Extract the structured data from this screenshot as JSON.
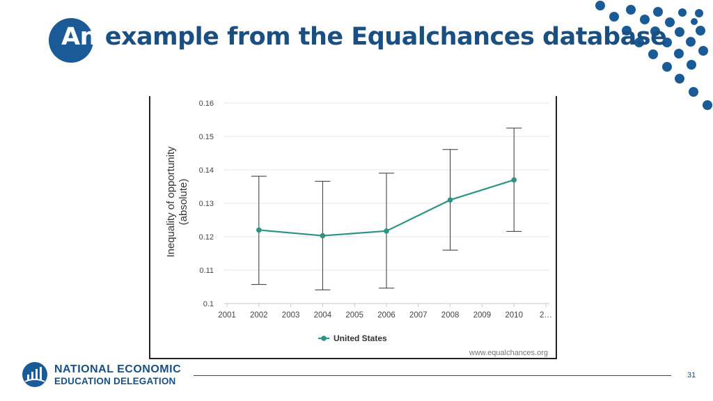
{
  "slide": {
    "title_first_word": "An",
    "title_rest": " example from the Equalchances database",
    "organization_line1": "NATIONAL ECONOMIC",
    "organization_line2": "EDUCATION DELEGATION",
    "page_number": "31",
    "accent_color": "#1a5a96"
  },
  "chart_data": {
    "type": "line",
    "title": "",
    "ylabel": "Inequality of opportunity (absolute)",
    "xlabel": "",
    "x_ticks": [
      "2001",
      "2002",
      "2003",
      "2004",
      "2005",
      "2006",
      "2007",
      "2008",
      "2009",
      "2010",
      "2…"
    ],
    "y_ticks": [
      "0.1",
      "0.11",
      "0.12",
      "0.13",
      "0.14",
      "0.15",
      "0.16"
    ],
    "ylim": [
      0.1,
      0.16
    ],
    "grid": "horizontal",
    "legend_position": "bottom",
    "watermark": "www.equalchances.org",
    "series": [
      {
        "name": "United States",
        "color": "#2e9384",
        "x": [
          2002,
          2004,
          2006,
          2008,
          2010
        ],
        "values": [
          0.122,
          0.1203,
          0.1217,
          0.131,
          0.137
        ],
        "error_low": [
          0.1057,
          0.1041,
          0.1046,
          0.116,
          0.1216
        ],
        "error_high": [
          0.1381,
          0.1366,
          0.139,
          0.1461,
          0.1525
        ]
      }
    ]
  }
}
